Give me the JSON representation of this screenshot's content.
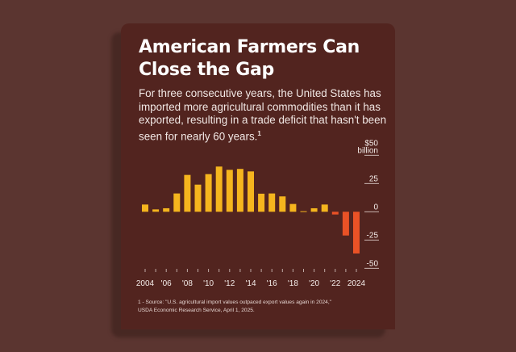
{
  "title": "American Farmers Can Close the Gap",
  "subtitle": "For three consecutive years, the United States has imported more agricultural commodities than it has exported, resulting in a trade deficit that hasn't been seen for nearly 60 years.",
  "subtitle_footnote_mark": "1",
  "footnote_line1": "1 - Source: \"U.S. agricultural import values outpaced export values again in 2024,\"",
  "footnote_line2": "USDA Economic Research Service, April 1, 2025.",
  "colors": {
    "background": "#5b3530",
    "card": "#52241f",
    "surplus": "#f5b51e",
    "deficit": "#ea5226"
  },
  "chart_data": {
    "type": "bar",
    "title": "",
    "ylabel_line1": "$50",
    "ylabel_line2": "billion",
    "ylim": [
      -50,
      50
    ],
    "yticks": [
      50,
      25,
      0,
      -25,
      -50
    ],
    "ytick_labels": [
      "$50",
      "25",
      "0",
      "-25",
      "-50"
    ],
    "axis_position": "right",
    "grid": false,
    "categories": [
      2004,
      2005,
      2006,
      2007,
      2008,
      2009,
      2010,
      2011,
      2012,
      2013,
      2014,
      2015,
      2016,
      2017,
      2018,
      2019,
      2020,
      2021,
      2022,
      2023,
      2024
    ],
    "xtick_labels": {
      "2004": "2004",
      "2006": "'06",
      "2008": "'08",
      "2010": "'10",
      "2012": "'12",
      "2014": "'14",
      "2016": "'16",
      "2018": "'18",
      "2020": "'20",
      "2022": "'22",
      "2024": "2024"
    },
    "values": [
      6.4,
      2.1,
      3.1,
      16.2,
      32.6,
      24,
      33.3,
      40,
      37.1,
      37.9,
      35.7,
      16,
      16.2,
      13.6,
      6.9,
      0.5,
      3.1,
      6.4,
      -2.4,
      -21,
      -36.9
    ]
  }
}
